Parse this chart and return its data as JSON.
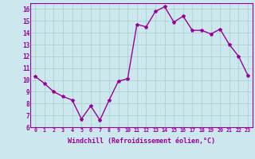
{
  "x": [
    0,
    1,
    2,
    3,
    4,
    5,
    6,
    7,
    8,
    9,
    10,
    11,
    12,
    13,
    14,
    15,
    16,
    17,
    18,
    19,
    20,
    21,
    22,
    23
  ],
  "y": [
    10.3,
    9.7,
    9.0,
    8.6,
    8.3,
    6.7,
    7.8,
    6.6,
    8.3,
    9.9,
    10.1,
    14.7,
    14.5,
    15.8,
    16.2,
    14.9,
    15.4,
    14.2,
    14.2,
    13.9,
    14.3,
    13.0,
    12.0,
    10.4
  ],
  "line_color": "#990099",
  "marker": "*",
  "marker_color": "#990099",
  "bg_color": "#cce8ee",
  "grid_color": "#aad4cc",
  "xlabel": "Windchill (Refroidissement éolien,°C)",
  "xlabel_color": "#990099",
  "tick_color": "#990099",
  "ylim": [
    6,
    16.5
  ],
  "yticks": [
    6,
    7,
    8,
    9,
    10,
    11,
    12,
    13,
    14,
    15,
    16
  ],
  "xlim": [
    -0.5,
    23.5
  ],
  "xticks": [
    0,
    1,
    2,
    3,
    4,
    5,
    6,
    7,
    8,
    9,
    10,
    11,
    12,
    13,
    14,
    15,
    16,
    17,
    18,
    19,
    20,
    21,
    22,
    23
  ],
  "xtick_labels": [
    "0",
    "1",
    "2",
    "3",
    "4",
    "5",
    "6",
    "7",
    "8",
    "9",
    "10",
    "11",
    "12",
    "13",
    "14",
    "15",
    "16",
    "17",
    "18",
    "19",
    "20",
    "21",
    "22",
    "23"
  ],
  "linewidth": 1.0,
  "markersize": 3
}
